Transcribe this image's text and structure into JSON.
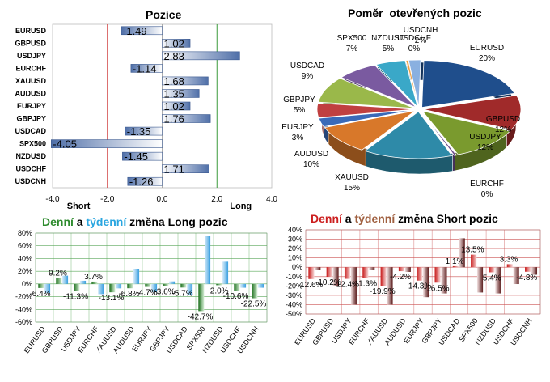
{
  "colors": {
    "long_neg_start": "#4f6fa8",
    "long_pos_start": "#6d8fc9",
    "red_line": "#d04040",
    "green_line": "#3a9a3a",
    "green": "#2e8b2e",
    "blue": "#2aa6e0",
    "red": "#cc1f1f",
    "brown": "#a06040"
  },
  "chart_data": [
    {
      "type": "bar",
      "orientation": "horizontal",
      "title": "Pozice",
      "categories": [
        "EURUSD",
        "GBPUSD",
        "USDJPY",
        "EURCHF",
        "XAUUSD",
        "AUDUSD",
        "EURJPY",
        "GBPJPY",
        "USDCAD",
        "SPX500",
        "NZDUSD",
        "USDCHF",
        "USDCNH"
      ],
      "values": [
        -1.49,
        1.02,
        2.83,
        -1.14,
        1.68,
        1.35,
        1.02,
        1.76,
        -1.35,
        -4.05,
        -1.45,
        1.71,
        -1.26
      ],
      "labels": [
        "-1.49",
        "1.02",
        "2.83",
        "-1.14",
        "1.68",
        "1.35",
        "1.02",
        "1.76",
        "-1.35",
        "-4.05",
        "-1.45",
        "1.71",
        "-1.26"
      ],
      "xlim": [
        -4,
        4
      ],
      "ticks": [
        "-4.0",
        "-2.0",
        "0.0",
        "2.0",
        "4.0"
      ],
      "tick_values": [
        -4,
        -2,
        0,
        2,
        4
      ],
      "short_label": "Short",
      "long_label": "Long",
      "ref_lines": [
        -2,
        2
      ]
    },
    {
      "type": "pie",
      "title": "Poměr  otevřených pozic",
      "slices": [
        {
          "label": "EURUSD",
          "value": 20,
          "pct": "20%",
          "color": "#1f4e8c"
        },
        {
          "label": "GBPUSD",
          "value": 12,
          "pct": "12%",
          "color": "#a02a2a"
        },
        {
          "label": "USDJPY",
          "value": 12,
          "pct": "12%",
          "color": "#7a9a2e"
        },
        {
          "label": "EURCHF",
          "value": 0.4,
          "pct": "0%",
          "color": "#6a4a8a"
        },
        {
          "label": "XAUUSD",
          "value": 15,
          "pct": "15%",
          "color": "#2e8aa8"
        },
        {
          "label": "AUDUSD",
          "value": 10,
          "pct": "10%",
          "color": "#d8782a"
        },
        {
          "label": "EURJPY",
          "value": 3,
          "pct": "3%",
          "color": "#3a6ab8"
        },
        {
          "label": "GBPJPY",
          "value": 5,
          "pct": "5%",
          "color": "#c04040"
        },
        {
          "label": "USDCAD",
          "value": 9,
          "pct": "9%",
          "color": "#9ab84a"
        },
        {
          "label": "SPX500",
          "value": 7,
          "pct": "7%",
          "color": "#7a5aa0"
        },
        {
          "label": "NZDUSD",
          "value": 5,
          "pct": "5%",
          "color": "#3aa8c8"
        },
        {
          "label": "USDCHF",
          "value": 0.4,
          "pct": "0%",
          "color": "#f0a040"
        },
        {
          "label": "USDCNH",
          "value": 2,
          "pct": "2%",
          "color": "#8ab0e0"
        }
      ]
    },
    {
      "type": "bar",
      "title_parts": [
        "Denní",
        " a ",
        "týdenní",
        " změna Long pozic"
      ],
      "categories": [
        "EURUSD",
        "GBPUSD",
        "USDJPY",
        "EURCHF",
        "XAUUSD",
        "AUDUSD",
        "EURJPY",
        "GBPJPY",
        "USDCAD",
        "SPX500",
        "NZDUSD",
        "USDCHF",
        "USDCNH"
      ],
      "series": [
        {
          "name": "Denní",
          "values": [
            -6.4,
            9.2,
            -11.3,
            3.7,
            -13.1,
            -6.8,
            -4.7,
            -3.6,
            -5.7,
            -42.7,
            -2.0,
            -10.6,
            -22.5
          ]
        },
        {
          "name": "týdenní",
          "values": [
            -14.0,
            13.0,
            5.0,
            -16.0,
            -7.0,
            24.0,
            -13.0,
            4.0,
            -18.0,
            75.0,
            35.0,
            -6.0,
            -6.0
          ]
        }
      ],
      "data_labels": [
        "-6.4%",
        "9.2%",
        "-11.3%",
        "3.7%",
        "-13.1%",
        "-6.8%",
        "-4.7%",
        "-3.6%",
        "-5.7%",
        "-42.7%",
        "-2.0%",
        "-10.6%",
        "-22.5%"
      ],
      "ylim": [
        -60,
        80
      ],
      "ticks": [
        "80%",
        "60%",
        "40%",
        "20%",
        "0%",
        "-20%",
        "-40%",
        "-60%"
      ],
      "tick_values": [
        80,
        60,
        40,
        20,
        0,
        -20,
        -40,
        -60
      ]
    },
    {
      "type": "bar",
      "title_parts": [
        "Denní",
        " a ",
        "týdenní",
        " změna Short pozic"
      ],
      "categories": [
        "EURUSD",
        "GBPUSD",
        "USDJPY",
        "EURCHF",
        "XAUUSD",
        "AUDUSD",
        "EURJPY",
        "GBPJPY",
        "USDCAD",
        "SPX500",
        "NZDUSD",
        "USDCHF",
        "USDCNH"
      ],
      "series": [
        {
          "name": "Denní",
          "values": [
            -12.6,
            -10.2,
            -12.4,
            -11.3,
            -19.9,
            -4.2,
            -14.3,
            -16.5,
            1.1,
            13.5,
            -5.4,
            3.3,
            -4.8
          ]
        },
        {
          "name": "týdenní",
          "values": [
            -3.0,
            -20.0,
            -40.0,
            -3.0,
            -40.0,
            -5.0,
            -32.0,
            -28.0,
            31.0,
            -27.0,
            -28.0,
            -18.0,
            -8.0
          ]
        }
      ],
      "data_labels": [
        "-12.6%",
        "-10.2%",
        "-12.4%",
        "-11.3%",
        "-19.9%",
        "-4.2%",
        "-14.3%",
        "-16.5%",
        "1.1%",
        "13.5%",
        "-5.4%",
        "3.3%",
        "-4.8%"
      ],
      "ylim": [
        -50,
        40
      ],
      "ticks": [
        "40%",
        "30%",
        "20%",
        "10%",
        "0%",
        "-10%",
        "-20%",
        "-30%",
        "-40%",
        "-50%"
      ],
      "tick_values": [
        40,
        30,
        20,
        10,
        0,
        -10,
        -20,
        -30,
        -40,
        -50
      ]
    }
  ]
}
